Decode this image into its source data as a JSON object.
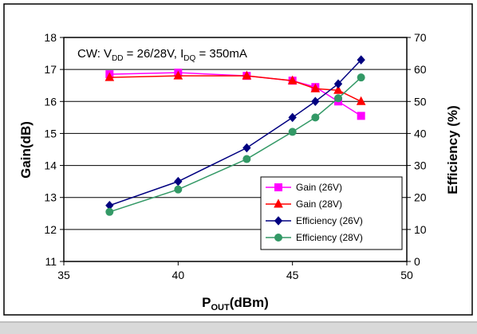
{
  "chart_data": {
    "type": "line",
    "annotation": {
      "prefix": "CW: V",
      "vdd_sub": "DD",
      "mid": " = 26/28V, I",
      "idq_sub": "DQ",
      "suffix": " = 350mA"
    },
    "xlabel": {
      "main": "P",
      "sub": "OUT",
      "rest": "(dBm)"
    },
    "ylabel_left": "Gain(dB)",
    "ylabel_right": "Efficiency (%)",
    "xlim": [
      35,
      50
    ],
    "ylim_left": [
      11,
      18
    ],
    "ylim_right": [
      0,
      70
    ],
    "x_ticks": [
      "35",
      "40",
      "45",
      "50"
    ],
    "y_left_ticks": [
      "11",
      "12",
      "13",
      "14",
      "15",
      "16",
      "17",
      "18"
    ],
    "y_right_ticks": [
      "0",
      "10",
      "20",
      "30",
      "40",
      "50",
      "60",
      "70"
    ],
    "grid": "horizontal",
    "legend_position": "bottom-right",
    "series": [
      {
        "name": "Gain (26V)",
        "axis": "left",
        "color": "#ff00ff",
        "marker": "square",
        "x": [
          37,
          40,
          43,
          45,
          46,
          47,
          48
        ],
        "y": [
          16.85,
          16.9,
          16.8,
          16.65,
          16.45,
          16.0,
          15.55
        ]
      },
      {
        "name": "Gain (28V)",
        "axis": "left",
        "color": "#ff0000",
        "marker": "triangle",
        "x": [
          37,
          40,
          43,
          45,
          46,
          47,
          48
        ],
        "y": [
          16.75,
          16.8,
          16.8,
          16.65,
          16.4,
          16.35,
          16.0
        ]
      },
      {
        "name": "Efficiency (26V)",
        "axis": "right",
        "color": "#000080",
        "marker": "diamond",
        "x": [
          37,
          40,
          43,
          45,
          46,
          47,
          48
        ],
        "y": [
          17.5,
          25,
          35.5,
          45,
          50,
          55.5,
          63
        ]
      },
      {
        "name": "Efficiency (28V)",
        "axis": "right",
        "color": "#339966",
        "marker": "circle",
        "x": [
          37,
          40,
          43,
          45,
          46,
          47,
          48
        ],
        "y": [
          15.5,
          22.5,
          32,
          40.5,
          45,
          51,
          57.5
        ]
      }
    ]
  }
}
